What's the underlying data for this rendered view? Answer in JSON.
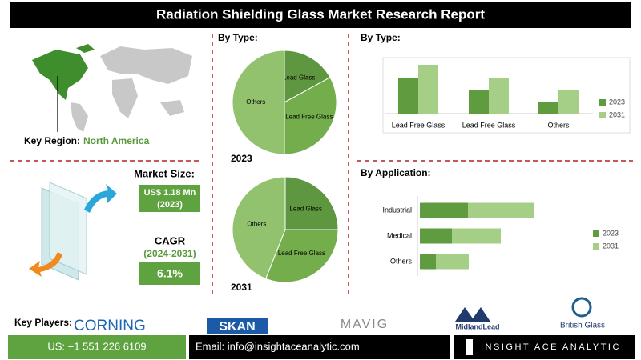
{
  "header": {
    "title": "Radiation Shielding Glass Market Research Report"
  },
  "key_region": {
    "label": "Key Region:",
    "value": "North America"
  },
  "market_size": {
    "label": "Market Size:",
    "value": "US$ 1.18 Mn",
    "year": "(2023)"
  },
  "cagr": {
    "label": "CAGR",
    "period": "(2024-2031)",
    "value": "6.1%"
  },
  "key_players": {
    "label": "Key Players:",
    "companies": [
      "CORNING",
      "SKAN",
      "MAVIG",
      "MidlandLead",
      "British Glass"
    ]
  },
  "footer": {
    "phone": "US: +1 551 226 6109",
    "email": "Email: info@insightaceanalytic.com",
    "brand": "INSIGHT ACE ANALYTIC"
  },
  "chart_data": [
    {
      "type": "pie",
      "title": "By Type:",
      "subtitle": "2023",
      "categories": [
        "Lead Glass",
        "Lead Free Glass",
        "Others"
      ],
      "values": [
        17,
        33,
        50
      ],
      "colors": [
        "#5f9640",
        "#74ad4c",
        "#92c26e"
      ]
    },
    {
      "type": "pie",
      "subtitle": "2031",
      "categories": [
        "Lead Glass",
        "Lead Free Glass",
        "Others"
      ],
      "values": [
        25,
        31,
        44
      ],
      "colors": [
        "#5f9640",
        "#74ad4c",
        "#92c26e"
      ]
    },
    {
      "type": "bar",
      "title": "By Type:",
      "categories": [
        "Lead Free Glass",
        "Lead Free Glass",
        "Others"
      ],
      "series": [
        {
          "name": "2023",
          "color": "#5f9b3f",
          "values": [
            45,
            30,
            14
          ]
        },
        {
          "name": "2031",
          "color": "#a5cf87",
          "values": [
            61,
            45,
            30
          ]
        }
      ]
    },
    {
      "type": "barh",
      "title": "By Application:",
      "categories": [
        "Industrial",
        "Medical",
        "Others"
      ],
      "series": [
        {
          "name": "2023",
          "color": "#5f9b3f",
          "values": [
            60,
            40,
            20
          ]
        },
        {
          "name": "2031",
          "color": "#a5cf87",
          "values": [
            82,
            61,
            41
          ]
        }
      ]
    }
  ]
}
